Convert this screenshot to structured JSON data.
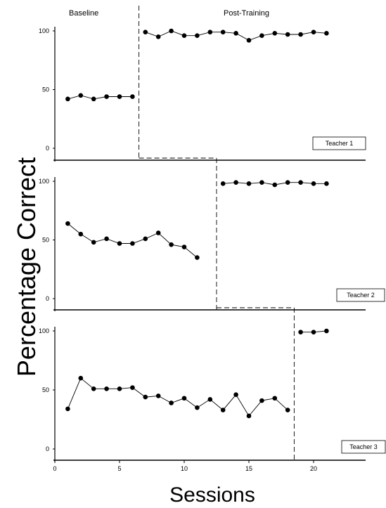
{
  "chart_data": {
    "type": "line",
    "title": "",
    "ylabel": "Percentage Correct",
    "xlabel": "Sessions",
    "xlim": [
      0,
      24
    ],
    "ylim": [
      0,
      100
    ],
    "x_ticks": [
      0,
      5,
      10,
      15,
      20
    ],
    "y_ticks": [
      0,
      50,
      100
    ],
    "phase_labels": [
      "Baseline",
      "Post-Training"
    ],
    "panels": [
      {
        "name": "Teacher 1",
        "phase_change_after": 6,
        "series": [
          {
            "phase": "Baseline",
            "x": [
              1,
              2,
              3,
              4,
              5,
              6
            ],
            "y": [
              42,
              45,
              42,
              44,
              44,
              44
            ]
          },
          {
            "phase": "Post-Training",
            "x": [
              7,
              8,
              9,
              10,
              11,
              12,
              13,
              14,
              15,
              16,
              17,
              18,
              19,
              20,
              21
            ],
            "y": [
              99,
              95,
              100,
              96,
              96,
              99,
              99,
              98,
              92,
              96,
              98,
              97,
              97,
              99,
              98
            ]
          }
        ]
      },
      {
        "name": "Teacher 2",
        "phase_change_after": 12,
        "series": [
          {
            "phase": "Baseline",
            "x": [
              1,
              2,
              3,
              4,
              5,
              6,
              7,
              8,
              9,
              10,
              11
            ],
            "y": [
              64,
              55,
              48,
              51,
              47,
              47,
              51,
              56,
              46,
              44,
              35
            ]
          },
          {
            "phase": "Post-Training",
            "x": [
              13,
              14,
              15,
              16,
              17,
              18,
              19,
              20,
              21
            ],
            "y": [
              98,
              99,
              98,
              99,
              97,
              99,
              99,
              98,
              98
            ]
          }
        ]
      },
      {
        "name": "Teacher 3",
        "phase_change_after": 18,
        "series": [
          {
            "phase": "Baseline",
            "x": [
              1,
              2,
              3,
              4,
              5,
              6,
              7,
              8,
              9,
              10,
              11,
              12,
              13,
              14,
              15,
              16,
              17,
              18
            ],
            "y": [
              34,
              60,
              51,
              51,
              51,
              52,
              44,
              45,
              39,
              43,
              35,
              42,
              33,
              46,
              28,
              41,
              43,
              33
            ]
          },
          {
            "phase": "Post-Training",
            "x": [
              19,
              20,
              21
            ],
            "y": [
              99,
              99,
              100
            ]
          }
        ]
      }
    ]
  }
}
